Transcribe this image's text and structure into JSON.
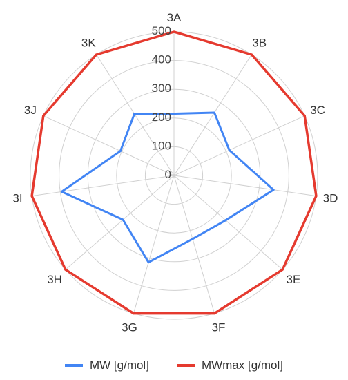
{
  "chart_data": {
    "type": "radar",
    "categories": [
      "3A",
      "3B",
      "3C",
      "3D",
      "3E",
      "3F",
      "3G",
      "3H",
      "3I",
      "3J",
      "3K"
    ],
    "rlim": [
      0,
      500
    ],
    "rticks": [
      0,
      100,
      200,
      300,
      400,
      500
    ],
    "rtick_labels": [
      "0",
      "100",
      "200",
      "300",
      "400",
      "500"
    ],
    "grid": true,
    "legend_position": "bottom",
    "series": [
      {
        "name": "MW [g/mol]",
        "color": "#4285f4",
        "values": [
          215,
          260,
          212,
          350,
          238,
          230,
          315,
          235,
          395,
          205,
          255
        ]
      },
      {
        "name": "MWmax [g/mol]",
        "color": "#e53a2f",
        "values": [
          500,
          500,
          500,
          500,
          500,
          500,
          500,
          500,
          500,
          500,
          500
        ]
      }
    ]
  }
}
